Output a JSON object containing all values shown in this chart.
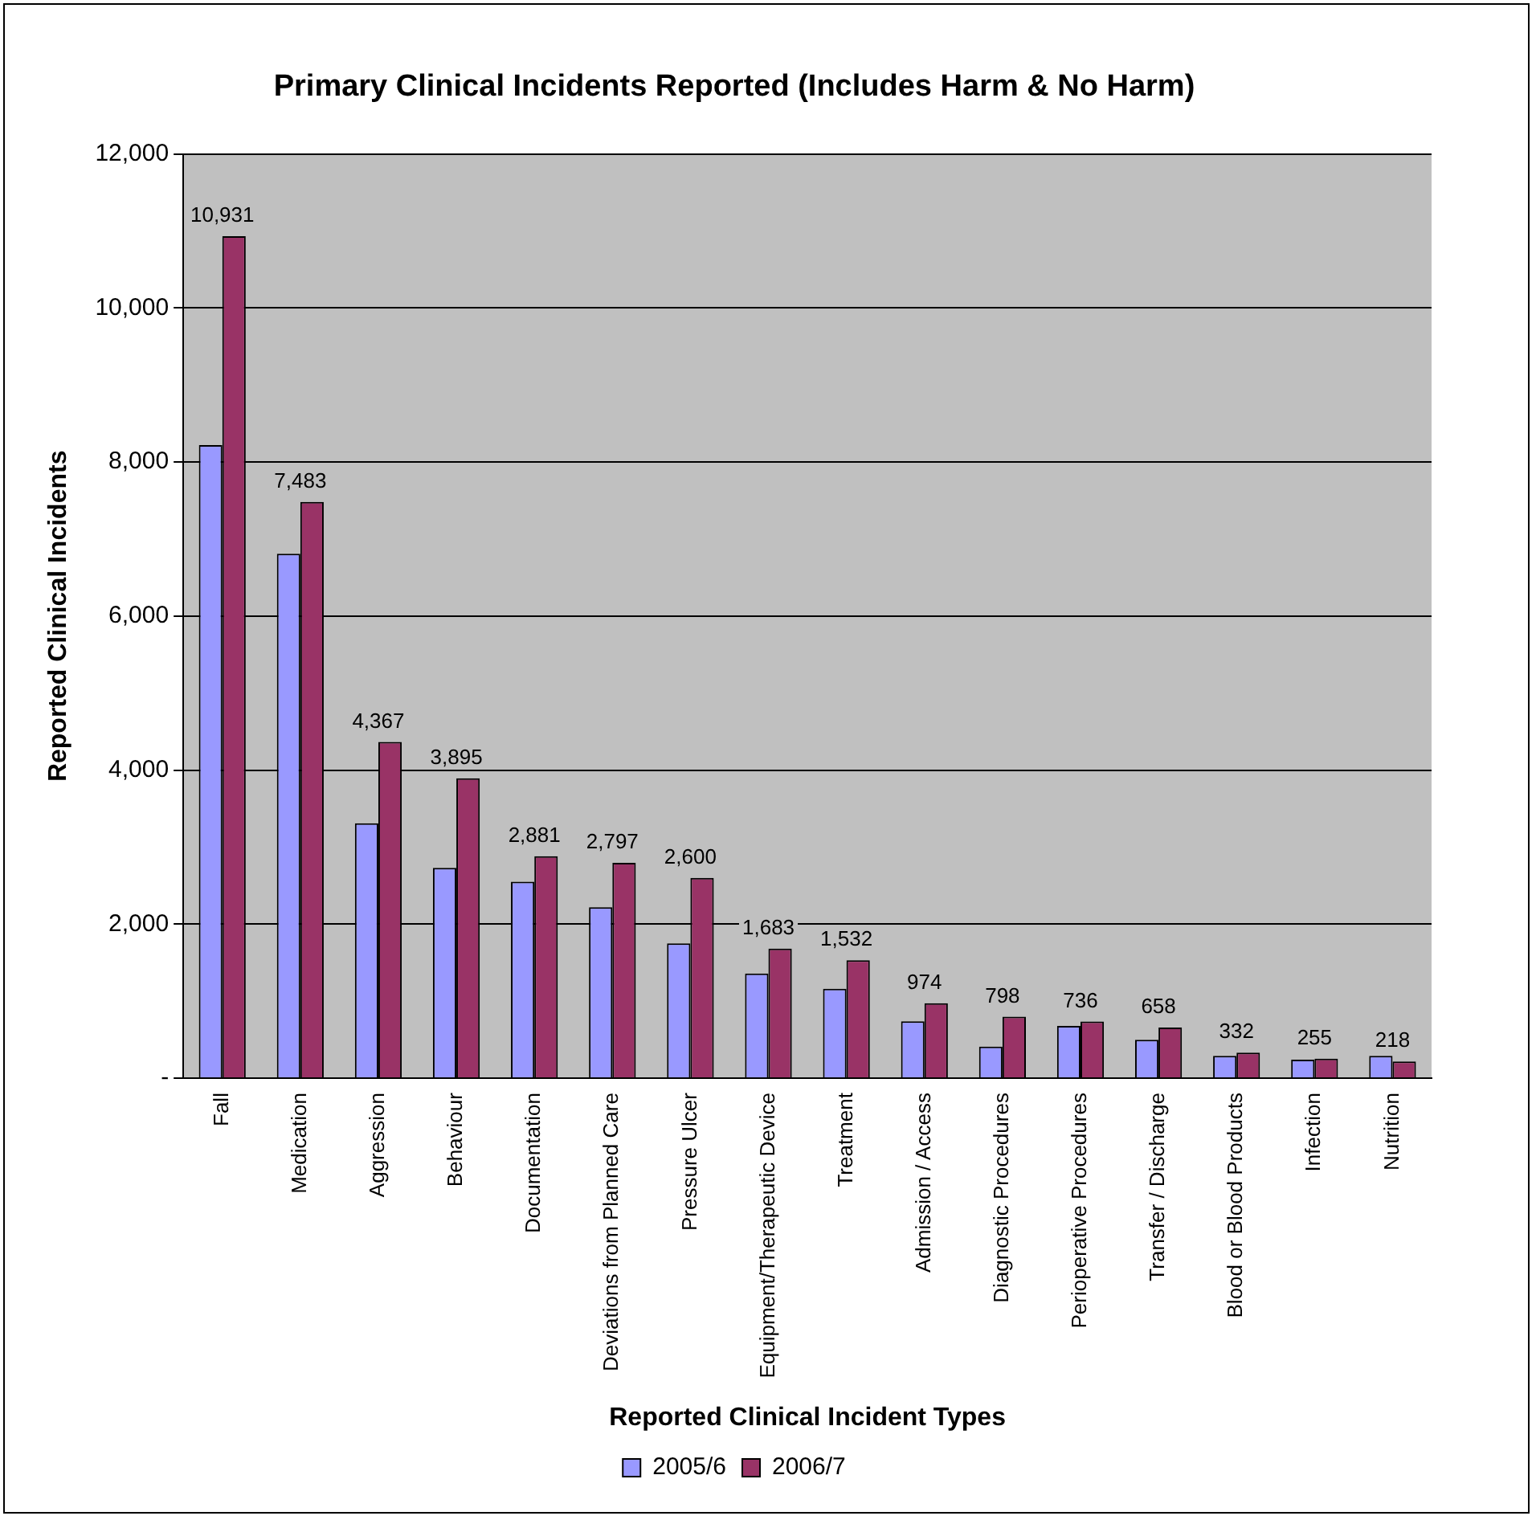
{
  "chart_data": {
    "type": "bar",
    "title": "Primary Clinical Incidents Reported (Includes Harm & No Harm)",
    "xlabel": "Reported Clinical Incident Types",
    "ylabel": "Reported Clinical Incidents",
    "categories": [
      "Fall",
      "Medication",
      "Aggression",
      "Behaviour",
      "Documentation",
      "Deviations from Planned Care",
      "Pressure Ulcer",
      "Equipment/Therapeutic Device",
      "Treatment",
      "Admission / Access",
      "Diagnostic Procedures",
      "Perioperative Procedures",
      "Transfer / Discharge",
      "Blood or Blood Products",
      "Infection",
      "Nutrition"
    ],
    "series": [
      {
        "name": "2005/6",
        "color": "#9999ff",
        "values": [
          8220,
          6810,
          3310,
          2730,
          2550,
          2220,
          1750,
          1360,
          1160,
          740,
          410,
          680,
          500,
          290,
          240,
          290
        ]
      },
      {
        "name": "2006/7",
        "color": "#993366",
        "values": [
          10931,
          7483,
          4367,
          3895,
          2881,
          2797,
          2600,
          1683,
          1532,
          974,
          798,
          736,
          658,
          332,
          255,
          218
        ],
        "value_labels": [
          "10,931",
          "7,483",
          "4,367",
          "3,895",
          "2,881",
          "2,797",
          "2,600",
          "1,683",
          "1,532",
          "974",
          "798",
          "736",
          "658",
          "332",
          "255",
          "218"
        ]
      }
    ],
    "ylim": [
      0,
      12000
    ],
    "yticks": [
      {
        "value": 0,
        "label": "-"
      },
      {
        "value": 2000,
        "label": "2,000"
      },
      {
        "value": 4000,
        "label": "4,000"
      },
      {
        "value": 6000,
        "label": "6,000"
      },
      {
        "value": 8000,
        "label": "8,000"
      },
      {
        "value": 10000,
        "label": "10,000"
      },
      {
        "value": 12000,
        "label": "12,000"
      }
    ],
    "grid": "y",
    "legend": "bottom"
  }
}
